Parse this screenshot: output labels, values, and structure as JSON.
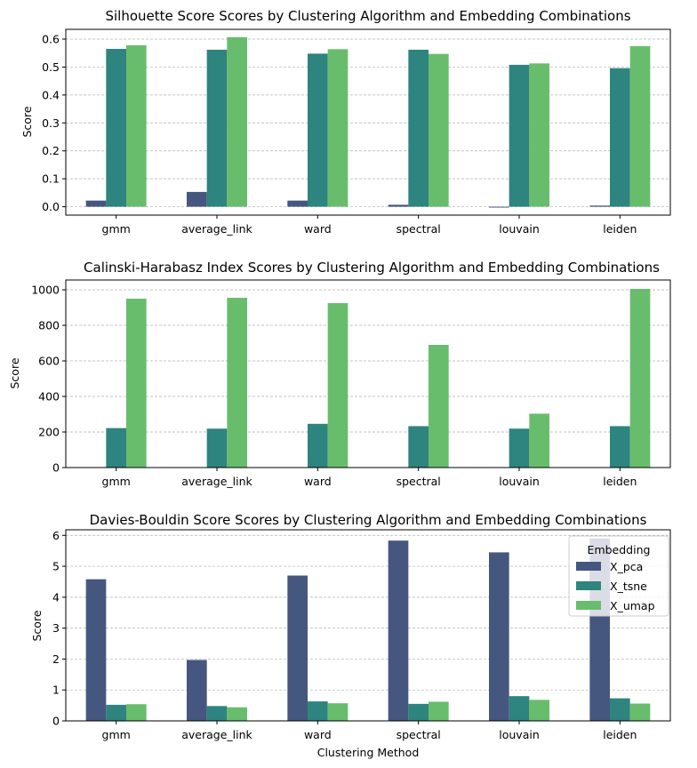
{
  "colors": {
    "X_pca": "#46577f",
    "X_tsne": "#2e847e",
    "X_umap": "#68bd6d"
  },
  "legend": {
    "title": "Embedding",
    "entries": [
      "X_pca",
      "X_tsne",
      "X_umap"
    ]
  },
  "chart_data": [
    {
      "type": "bar",
      "title": "Silhouette Score Scores by Clustering Algorithm and Embedding Combinations",
      "xlabel": "",
      "ylabel": "Score",
      "categories": [
        "gmm",
        "average_link",
        "ward",
        "spectral",
        "louvain",
        "leiden"
      ],
      "ylim": [
        -0.03,
        0.635
      ],
      "yticks": [
        0.0,
        0.1,
        0.2,
        0.3,
        0.4,
        0.5,
        0.6
      ],
      "ytick_labels": [
        "0.0",
        "0.1",
        "0.2",
        "0.3",
        "0.4",
        "0.5",
        "0.6"
      ],
      "grid": "horizontal dashed",
      "series": [
        {
          "name": "X_pca",
          "values": [
            0.022,
            0.053,
            0.022,
            0.007,
            -0.003,
            0.004
          ]
        },
        {
          "name": "X_tsne",
          "values": [
            0.565,
            0.562,
            0.548,
            0.562,
            0.508,
            0.496
          ]
        },
        {
          "name": "X_umap",
          "values": [
            0.578,
            0.607,
            0.564,
            0.547,
            0.513,
            0.575
          ]
        }
      ]
    },
    {
      "type": "bar",
      "title": "Calinski-Harabasz Index Scores by Clustering Algorithm and Embedding Combinations",
      "xlabel": "",
      "ylabel": "Score",
      "categories": [
        "gmm",
        "average_link",
        "ward",
        "spectral",
        "louvain",
        "leiden"
      ],
      "ylim": [
        0,
        1055
      ],
      "yticks": [
        0,
        200,
        400,
        600,
        800,
        1000
      ],
      "ytick_labels": [
        "0",
        "200",
        "400",
        "600",
        "800",
        "1000"
      ],
      "grid": "horizontal dashed",
      "series": [
        {
          "name": "X_pca",
          "values": [
            0,
            0,
            0,
            0,
            0,
            0
          ]
        },
        {
          "name": "X_tsne",
          "values": [
            222,
            219,
            246,
            233,
            219,
            233
          ]
        },
        {
          "name": "X_umap",
          "values": [
            950,
            955,
            925,
            690,
            303,
            1005
          ]
        }
      ]
    },
    {
      "type": "bar",
      "title": "Davies-Bouldin Score Scores by Clustering Algorithm and Embedding Combinations",
      "xlabel": "Clustering Method",
      "ylabel": "Score",
      "categories": [
        "gmm",
        "average_link",
        "ward",
        "spectral",
        "louvain",
        "leiden"
      ],
      "ylim": [
        0,
        6.18
      ],
      "yticks": [
        0,
        1,
        2,
        3,
        4,
        5,
        6
      ],
      "ytick_labels": [
        "0",
        "1",
        "2",
        "3",
        "4",
        "5",
        "6"
      ],
      "grid": "horizontal dashed",
      "legend_position": "top-right",
      "series": [
        {
          "name": "X_pca",
          "values": [
            4.58,
            1.97,
            4.7,
            5.83,
            5.45,
            5.9
          ]
        },
        {
          "name": "X_tsne",
          "values": [
            0.52,
            0.48,
            0.63,
            0.55,
            0.8,
            0.73
          ]
        },
        {
          "name": "X_umap",
          "values": [
            0.54,
            0.44,
            0.57,
            0.62,
            0.68,
            0.56
          ]
        }
      ]
    }
  ]
}
